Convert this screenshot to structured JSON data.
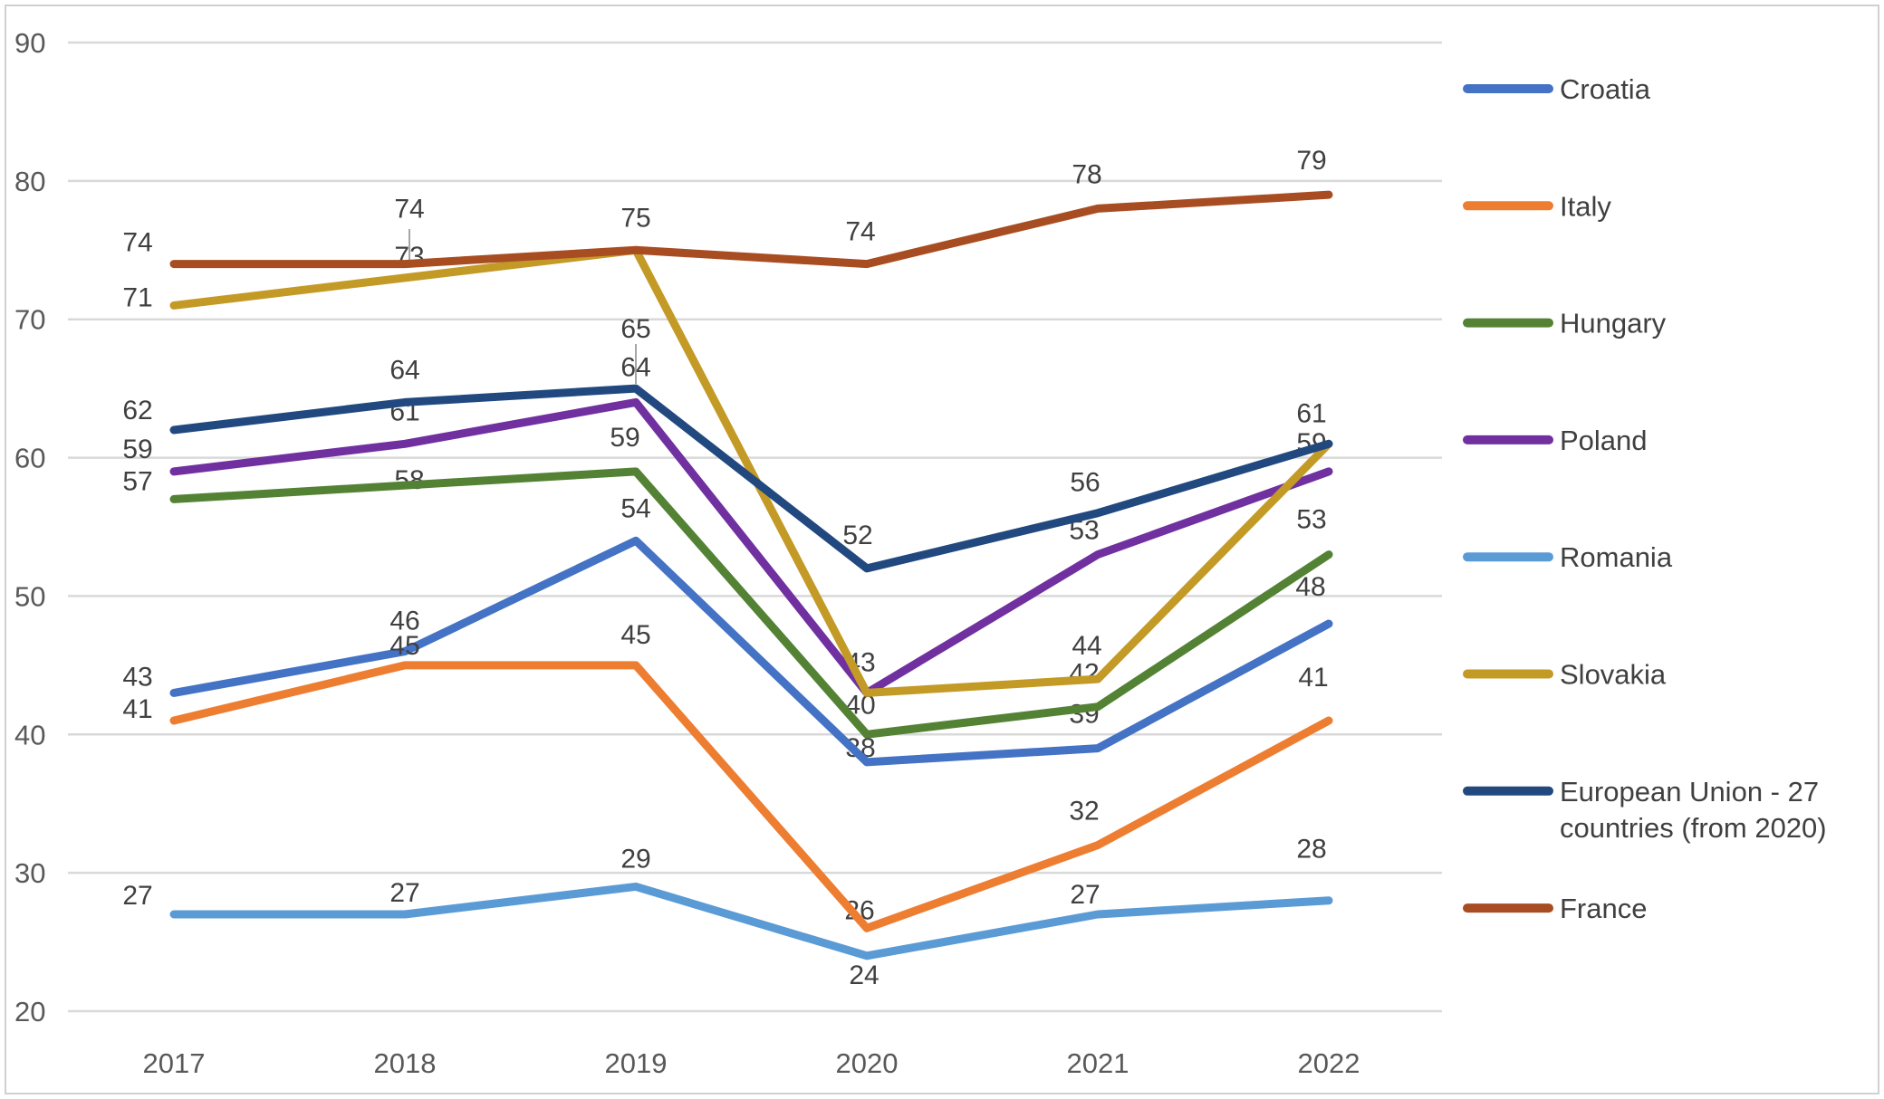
{
  "chart_data": {
    "type": "line",
    "title": "",
    "xlabel": "",
    "ylabel": "",
    "categories": [
      "2017",
      "2018",
      "2019",
      "2020",
      "2021",
      "2022"
    ],
    "series": [
      {
        "name": "Croatia",
        "color": "#4472C4",
        "values": [
          43,
          46,
          54,
          38,
          39,
          48
        ]
      },
      {
        "name": "Italy",
        "color": "#ED7D31",
        "values": [
          41,
          45,
          45,
          26,
          32,
          41
        ]
      },
      {
        "name": "Hungary",
        "color": "#548235",
        "values": [
          57,
          58,
          59,
          40,
          42,
          53
        ]
      },
      {
        "name": "Poland",
        "color": "#7030A0",
        "values": [
          59,
          61,
          64,
          43,
          53,
          59
        ]
      },
      {
        "name": "Romania",
        "color": "#5B9BD5",
        "values": [
          27,
          27,
          29,
          24,
          27,
          28
        ]
      },
      {
        "name": "Slovakia",
        "color": "#C49A27",
        "values": [
          71,
          73,
          75,
          43,
          44,
          61
        ]
      },
      {
        "name": "European Union - 27 countries (from 2020)",
        "color": "#21497F",
        "values": [
          62,
          64,
          65,
          52,
          56,
          61
        ]
      },
      {
        "name": "France",
        "color": "#A84D22",
        "values": [
          74,
          74,
          75,
          74,
          78,
          79
        ]
      }
    ],
    "ylim": [
      20,
      90
    ],
    "y_ticks": [
      90,
      80,
      70,
      60,
      50,
      40,
      30,
      20
    ],
    "grid": true,
    "data_labels": true,
    "legend_position": "right",
    "colors": {
      "axis_text": "#595959",
      "data_label_text": "#404040",
      "legend_text": "#404040",
      "gridline": "#D9D9D9",
      "leader_line": "#A6A6A6",
      "chart_border": "#D0D0D0"
    }
  }
}
